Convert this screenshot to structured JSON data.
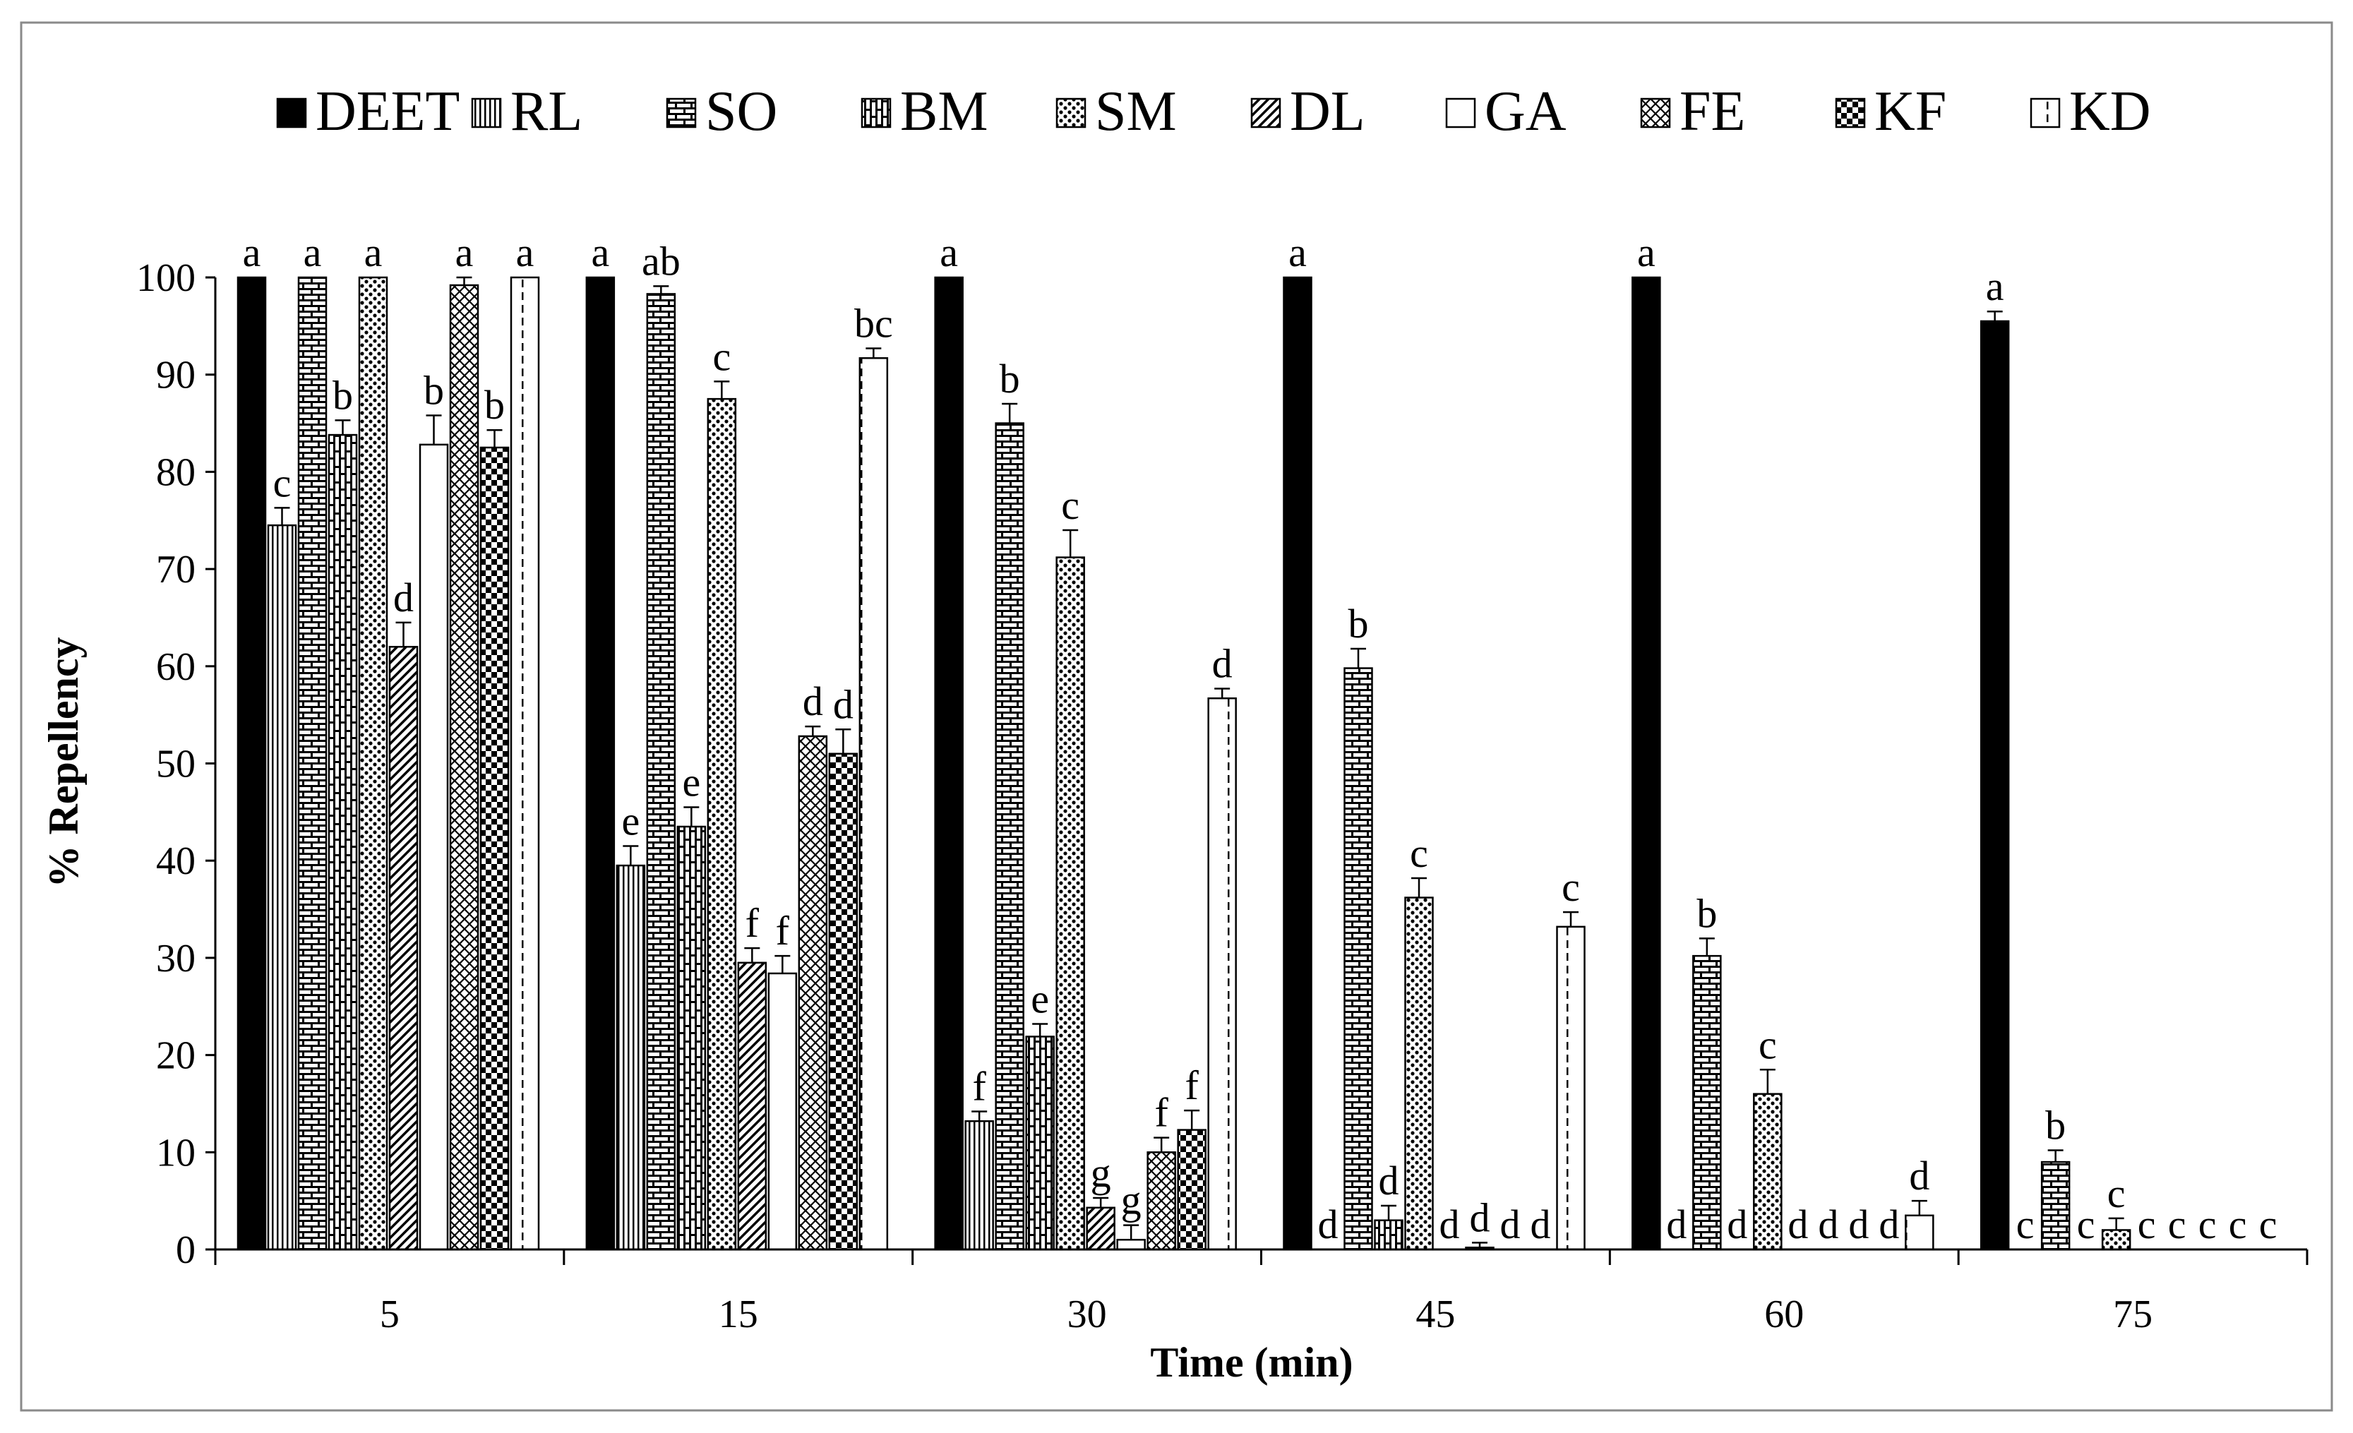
{
  "chart_data": {
    "type": "bar",
    "title": "",
    "xlabel": "Time (min)",
    "ylabel": "% Repellency",
    "ylim": [
      0,
      100
    ],
    "yticks": [
      0,
      10,
      20,
      30,
      40,
      50,
      60,
      70,
      80,
      90,
      100
    ],
    "grid": false,
    "legend_position": "top",
    "categories": [
      "5",
      "15",
      "30",
      "45",
      "60",
      "75"
    ],
    "series": [
      {
        "name": "DEET",
        "pattern": "solid",
        "values": [
          100,
          100,
          100,
          100,
          100,
          95.5
        ],
        "errors": [
          0,
          0,
          0,
          0,
          0,
          1.0
        ],
        "labels": [
          "a",
          "a",
          "a",
          "a",
          "a",
          "a"
        ]
      },
      {
        "name": "RL",
        "pattern": "vertical-lines",
        "values": [
          74.5,
          39.5,
          13.2,
          0,
          0,
          0
        ],
        "errors": [
          1.8,
          2.0,
          1.0,
          0,
          0,
          0
        ],
        "labels": [
          "c",
          "e",
          "f",
          "d",
          "d",
          "c"
        ]
      },
      {
        "name": "SO",
        "pattern": "brick-horizontal",
        "values": [
          100,
          98.3,
          85,
          59.8,
          30.2,
          9.0
        ],
        "errors": [
          0,
          0.8,
          2.0,
          2.0,
          1.8,
          1.2
        ],
        "labels": [
          "a",
          "ab",
          "b",
          "b",
          "b",
          "b"
        ]
      },
      {
        "name": "BM",
        "pattern": "brick-vertical",
        "values": [
          83.8,
          43.5,
          21.9,
          3.0,
          0,
          0
        ],
        "errors": [
          1.5,
          2.0,
          1.3,
          1.5,
          0,
          0
        ],
        "labels": [
          "b",
          "e",
          "e",
          "d",
          "d",
          "c"
        ]
      },
      {
        "name": "SM",
        "pattern": "dots",
        "values": [
          100,
          87.5,
          71.2,
          36.2,
          16.0,
          2.0
        ],
        "errors": [
          0,
          1.8,
          2.8,
          2.0,
          2.5,
          1.2
        ],
        "labels": [
          "a",
          "c",
          "c",
          "c",
          "c",
          "c"
        ]
      },
      {
        "name": "DL",
        "pattern": "diagonal",
        "values": [
          62,
          29.5,
          4.3,
          0,
          0,
          0
        ],
        "errors": [
          2.5,
          1.5,
          1.0,
          0,
          0,
          0
        ],
        "labels": [
          "d",
          "f",
          "g",
          "d",
          "d",
          "c"
        ]
      },
      {
        "name": "GA",
        "pattern": "empty",
        "values": [
          82.8,
          28.4,
          1.0,
          0.2,
          0,
          0
        ],
        "errors": [
          3.0,
          1.8,
          1.5,
          0.5,
          0,
          0
        ],
        "labels": [
          "b",
          "f",
          "g",
          "d",
          "d",
          "c"
        ]
      },
      {
        "name": "FE",
        "pattern": "crosshatch",
        "values": [
          99.2,
          52.8,
          10.0,
          0,
          0,
          0
        ],
        "errors": [
          0.8,
          1.0,
          1.5,
          0,
          0,
          0
        ],
        "labels": [
          "a",
          "d",
          "f",
          "d",
          "d",
          "c"
        ]
      },
      {
        "name": "KF",
        "pattern": "checker",
        "values": [
          82.5,
          51.0,
          12.3,
          0,
          0,
          0
        ],
        "errors": [
          1.8,
          2.5,
          2.0,
          0,
          0,
          0
        ],
        "labels": [
          "b",
          "d",
          "f",
          "d",
          "d",
          "c"
        ]
      },
      {
        "name": "KD",
        "pattern": "dashed",
        "values": [
          100,
          91.7,
          56.7,
          33.2,
          3.5,
          0
        ],
        "errors": [
          0,
          1.0,
          1.0,
          1.5,
          1.5,
          0
        ],
        "labels": [
          "a",
          "bc",
          "d",
          "c",
          "d",
          "c"
        ]
      }
    ]
  }
}
